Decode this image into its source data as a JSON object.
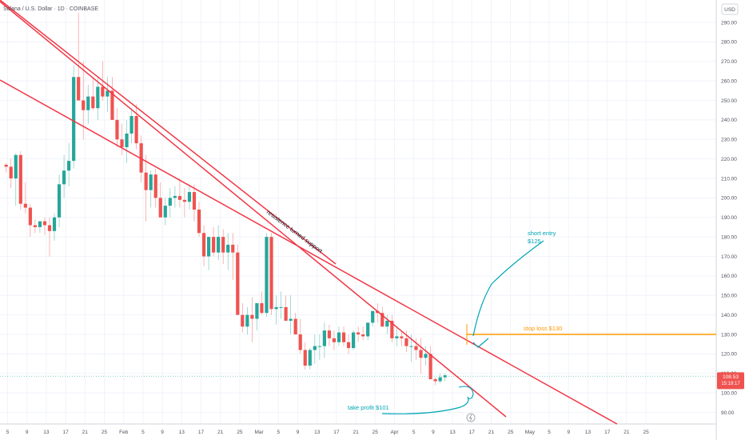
{
  "header": {
    "title": "Solana / U.S. Dollar · 1D · COINBASE",
    "currency_label": "USD"
  },
  "price_badge": {
    "price": "108.53",
    "countdown": "15:19:17"
  },
  "colors": {
    "up": "#26a69a",
    "down": "#ef5350",
    "trendline": "#f23645",
    "stop": "#ff9800",
    "annotation": "#00a5b5",
    "badge": "#ef5350"
  },
  "annotations": {
    "trendline_label": "resistence turned support",
    "short_entry_line1": "short entry",
    "short_entry_line2": "$125",
    "stop_loss": "stop loss $130",
    "take_profit": "take profit $101"
  },
  "chart_data": {
    "type": "candlestick",
    "title": "Solana / U.S. Dollar · 1D · COINBASE",
    "xlabel": "",
    "ylabel": "",
    "ylim": [
      85,
      295
    ],
    "y_ticks": [
      90,
      100,
      110,
      120,
      130,
      140,
      150,
      160,
      170,
      180,
      190,
      200,
      210,
      220,
      230,
      240,
      250,
      260,
      270,
      280,
      290
    ],
    "x_ticks": [
      "5",
      "9",
      "13",
      "17",
      "21",
      "25",
      "Feb",
      "5",
      "9",
      "13",
      "17",
      "21",
      "25",
      "Mar",
      "5",
      "9",
      "13",
      "17",
      "21",
      "25",
      "Apr",
      "5",
      "9",
      "13",
      "17",
      "21",
      "25",
      "May",
      "5",
      "9",
      "13",
      "17",
      "21",
      "25"
    ],
    "series": [
      {
        "ohlc": [
          [
            217,
            218,
            213,
            216
          ],
          [
            216,
            220,
            205,
            210
          ],
          [
            210,
            223,
            196,
            222
          ],
          [
            222,
            224,
            194,
            197
          ],
          [
            197,
            208,
            192,
            195
          ],
          [
            195,
            197,
            180,
            186
          ],
          [
            186,
            189,
            182,
            185
          ],
          [
            185,
            188,
            182,
            188
          ],
          [
            188,
            190,
            181,
            186
          ],
          [
            186,
            190,
            170,
            183
          ],
          [
            183,
            192,
            178,
            190
          ],
          [
            190,
            212,
            185,
            207
          ],
          [
            207,
            222,
            200,
            214
          ],
          [
            214,
            228,
            206,
            219
          ],
          [
            219,
            268,
            215,
            262
          ],
          [
            262,
            295,
            250,
            250
          ],
          [
            250,
            270,
            230,
            245
          ],
          [
            245,
            258,
            238,
            252
          ],
          [
            252,
            262,
            245,
            246
          ],
          [
            246,
            262,
            240,
            257
          ],
          [
            257,
            270,
            250,
            252
          ],
          [
            252,
            262,
            244,
            255
          ],
          [
            255,
            262,
            240,
            240
          ],
          [
            240,
            246,
            226,
            230
          ],
          [
            230,
            238,
            222,
            226
          ],
          [
            226,
            240,
            218,
            233
          ],
          [
            233,
            246,
            228,
            242
          ],
          [
            242,
            248,
            225,
            228
          ],
          [
            228,
            232,
            208,
            213
          ],
          [
            213,
            222,
            188,
            204
          ],
          [
            204,
            214,
            195,
            212
          ],
          [
            212,
            215,
            195,
            200
          ],
          [
            200,
            208,
            190,
            190
          ],
          [
            190,
            200,
            186,
            196
          ],
          [
            196,
            205,
            190,
            200
          ],
          [
            200,
            206,
            195,
            201
          ],
          [
            201,
            210,
            195,
            199
          ],
          [
            199,
            205,
            190,
            198
          ],
          [
            198,
            207,
            194,
            203
          ],
          [
            203,
            207,
            188,
            194
          ],
          [
            194,
            198,
            180,
            182
          ],
          [
            182,
            186,
            165,
            170
          ],
          [
            170,
            180,
            163,
            180
          ],
          [
            180,
            185,
            170,
            172
          ],
          [
            172,
            186,
            168,
            180
          ],
          [
            180,
            184,
            166,
            172
          ],
          [
            172,
            182,
            163,
            176
          ],
          [
            176,
            182,
            158,
            172
          ],
          [
            172,
            176,
            140,
            140
          ],
          [
            140,
            146,
            131,
            134
          ],
          [
            134,
            144,
            130,
            140
          ],
          [
            140,
            149,
            126,
            138
          ],
          [
            138,
            146,
            132,
            146
          ],
          [
            146,
            152,
            140,
            141
          ],
          [
            141,
            182,
            139,
            180
          ],
          [
            180,
            182,
            140,
            143
          ],
          [
            143,
            150,
            135,
            144
          ],
          [
            144,
            152,
            138,
            144
          ],
          [
            144,
            150,
            138,
            137
          ],
          [
            137,
            150,
            130,
            138
          ],
          [
            138,
            141,
            131,
            130
          ],
          [
            130,
            138,
            120,
            122
          ],
          [
            122,
            126,
            112,
            114
          ],
          [
            114,
            123,
            112,
            122
          ],
          [
            122,
            130,
            115,
            124
          ],
          [
            124,
            130,
            117,
            124
          ],
          [
            124,
            136,
            118,
            132
          ],
          [
            132,
            135,
            124,
            128
          ],
          [
            128,
            132,
            122,
            126
          ],
          [
            126,
            134,
            124,
            131
          ],
          [
            131,
            134,
            124,
            126
          ],
          [
            126,
            130,
            120,
            123
          ],
          [
            123,
            132,
            122,
            131
          ],
          [
            131,
            134,
            126,
            130
          ],
          [
            130,
            134,
            127,
            129
          ],
          [
            129,
            136,
            127,
            136
          ],
          [
            136,
            142,
            134,
            142
          ],
          [
            142,
            146,
            136,
            141
          ],
          [
            141,
            144,
            134,
            134
          ],
          [
            134,
            140,
            130,
            137
          ],
          [
            137,
            140,
            126,
            128
          ],
          [
            128,
            134,
            124,
            129
          ],
          [
            129,
            132,
            124,
            128
          ],
          [
            128,
            132,
            121,
            124
          ],
          [
            124,
            130,
            116,
            124
          ],
          [
            124,
            128,
            117,
            122
          ],
          [
            122,
            128,
            110,
            118
          ],
          [
            118,
            124,
            114,
            120
          ],
          [
            120,
            124,
            108,
            107
          ],
          [
            107,
            108,
            104,
            106
          ],
          [
            106,
            110,
            105,
            108
          ],
          [
            108,
            110,
            106,
            109
          ]
        ]
      }
    ],
    "last_price": 108.53,
    "horizontal_levels": [
      {
        "price": 130,
        "label": "stop loss $130"
      }
    ]
  }
}
